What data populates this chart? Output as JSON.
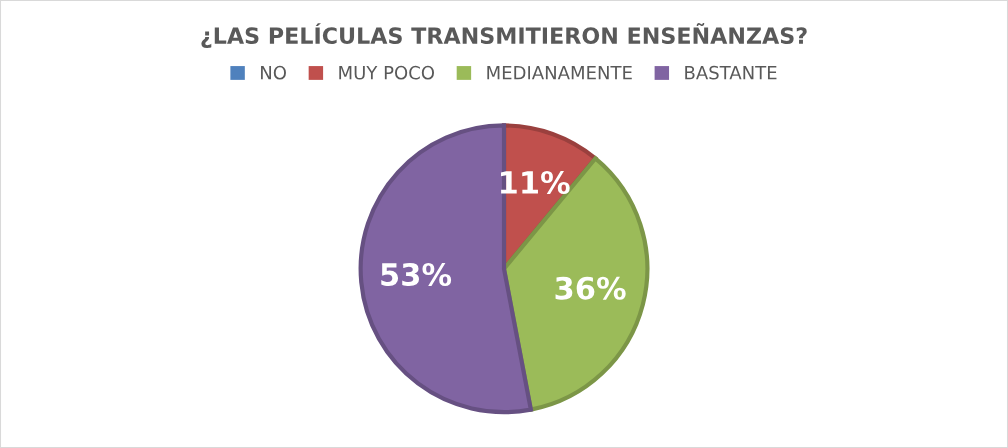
{
  "chart_data": {
    "type": "pie",
    "title": "¿LAS PELÍCULAS TRANSMITIERON ENSEÑANZAS?",
    "categories": [
      "NO",
      "MUY POCO",
      "MEDIANAMENTE",
      "BASTANTE"
    ],
    "values": [
      0,
      11,
      36,
      53
    ],
    "colors": [
      "#4f81bd",
      "#c0504d",
      "#9bbb59",
      "#8064a2"
    ],
    "value_labels": [
      null,
      "11%",
      "36%",
      "53%"
    ],
    "legend": "top"
  }
}
